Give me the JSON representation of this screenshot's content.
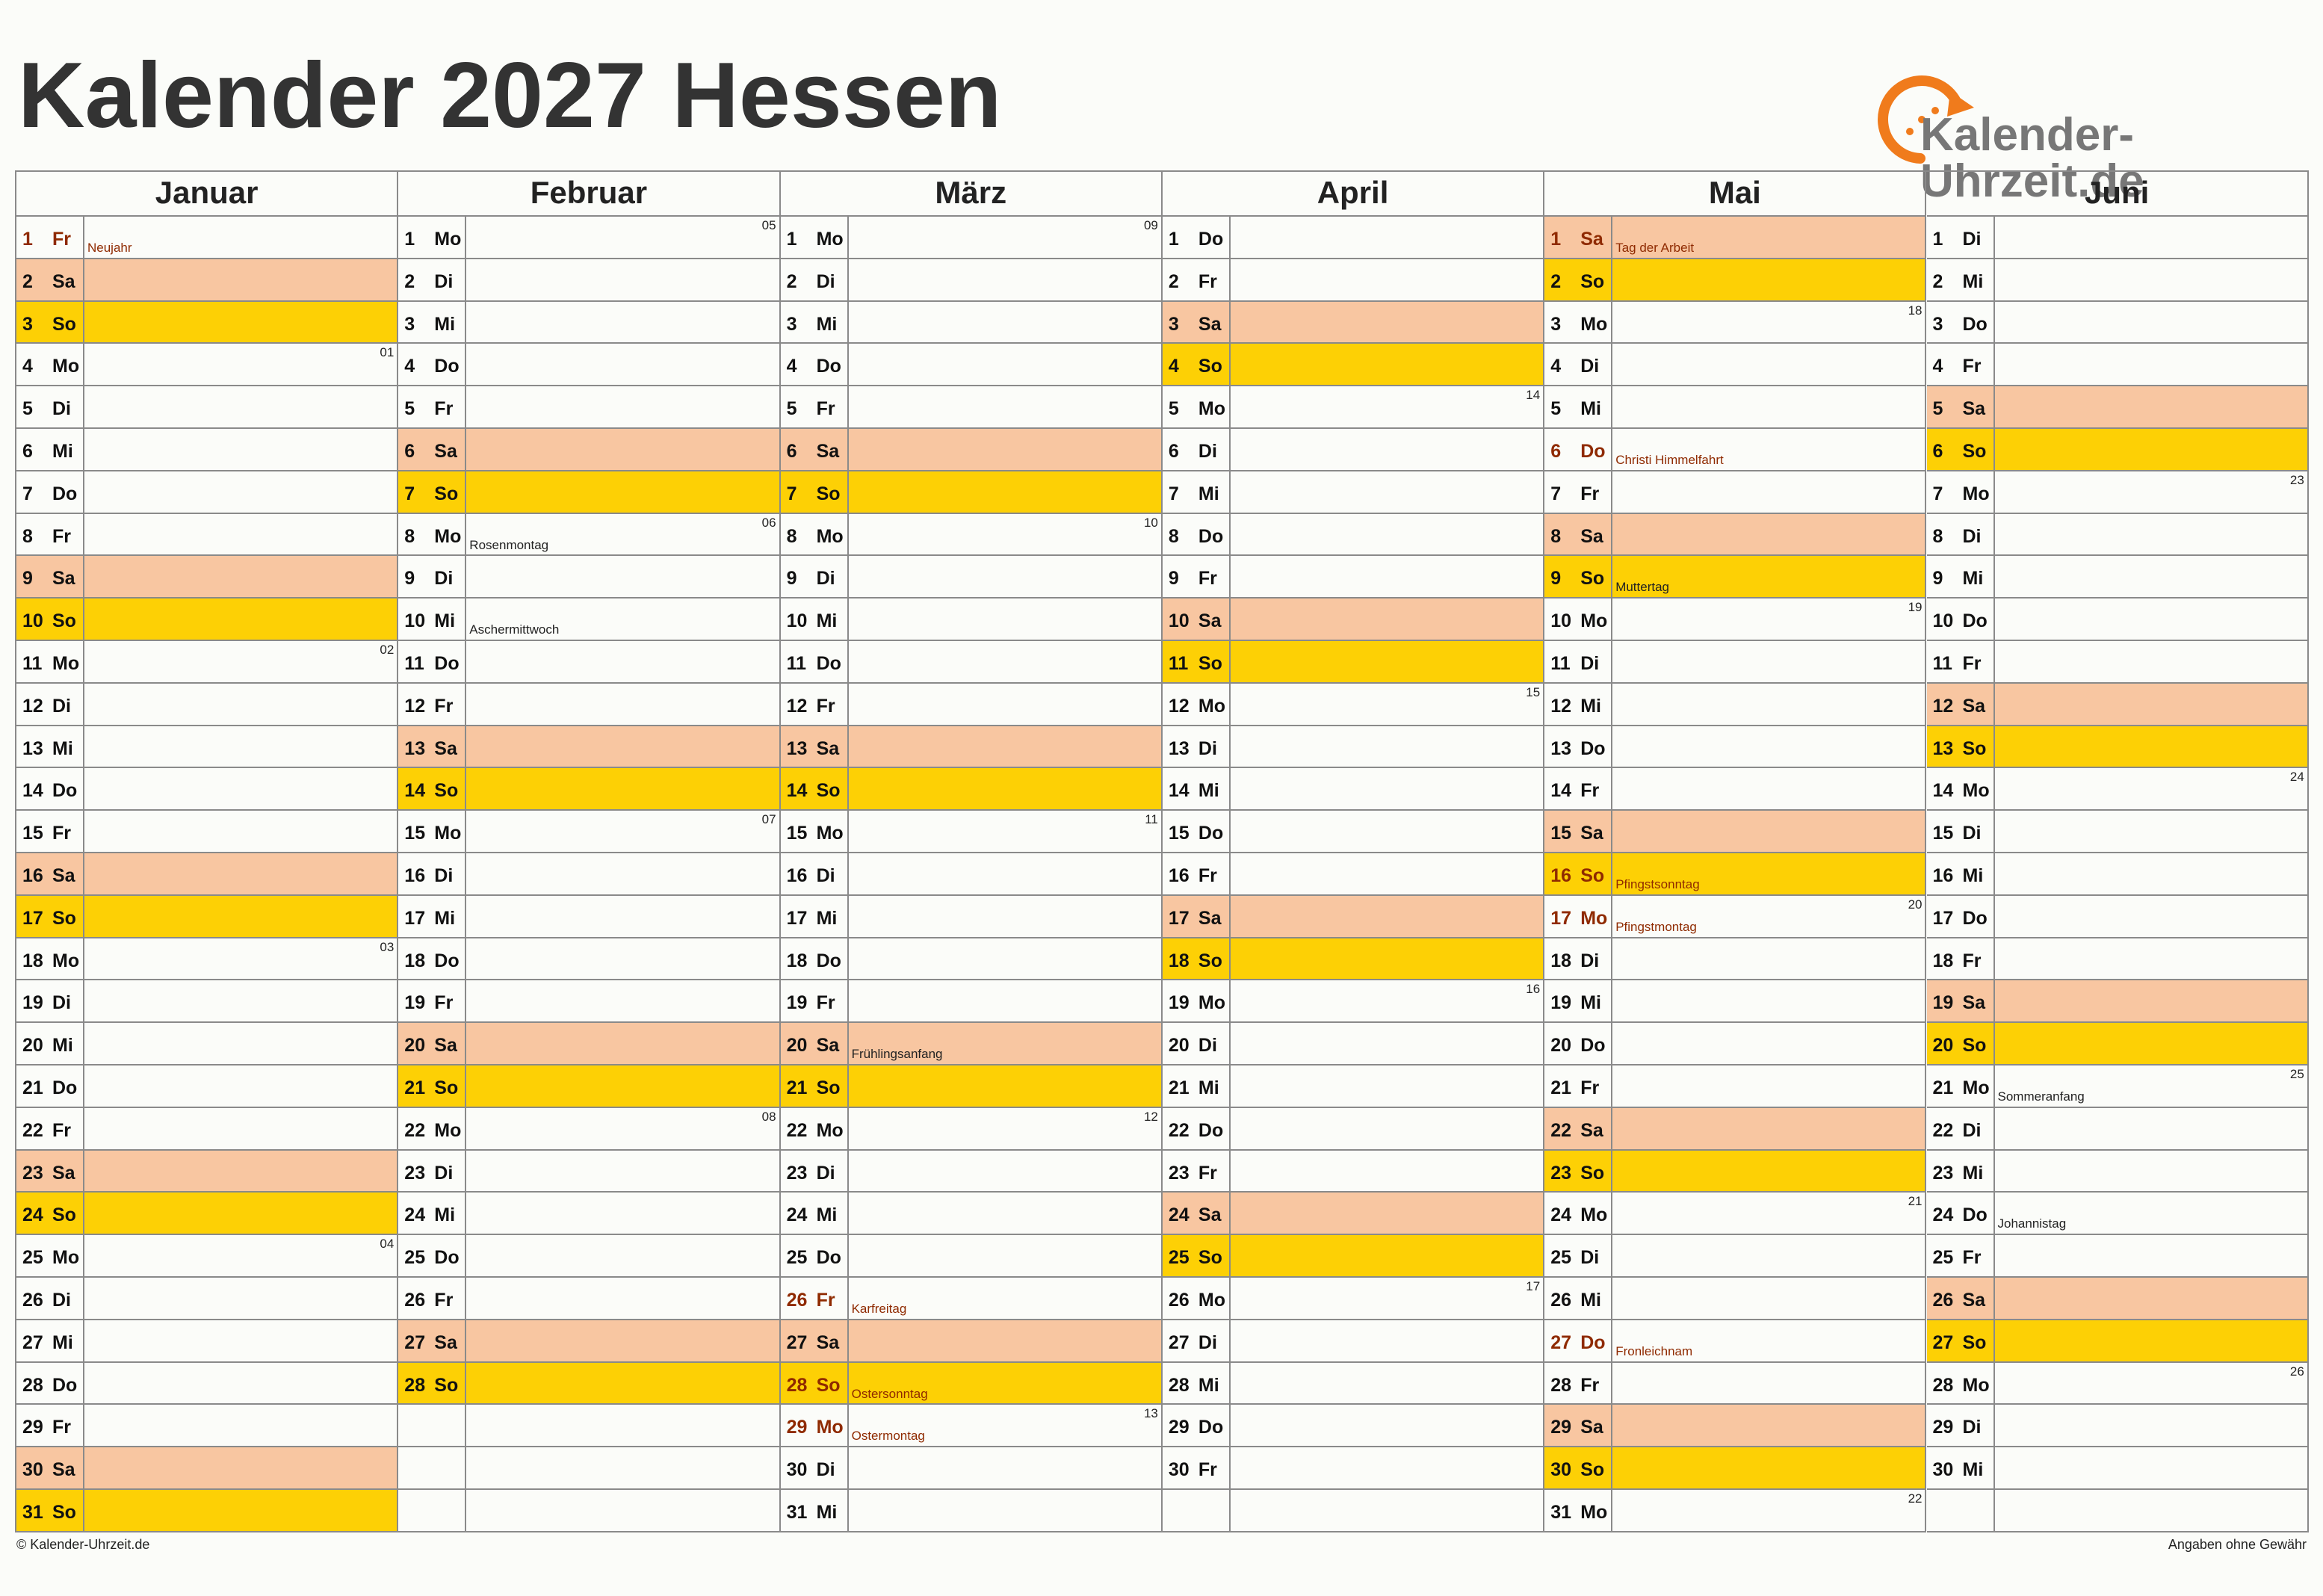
{
  "header": {
    "title": "Kalender 2027 Hessen",
    "logo": "Kalender-Uhrzeit.de"
  },
  "months": [
    {
      "name": "Januar",
      "days": [
        {
          "d": 1,
          "w": "Fr",
          "n": "Neujahr",
          "h": true
        },
        {
          "d": 2,
          "w": "Sa"
        },
        {
          "d": 3,
          "w": "So"
        },
        {
          "d": 4,
          "w": "Mo",
          "k": "01"
        },
        {
          "d": 5,
          "w": "Di"
        },
        {
          "d": 6,
          "w": "Mi"
        },
        {
          "d": 7,
          "w": "Do"
        },
        {
          "d": 8,
          "w": "Fr"
        },
        {
          "d": 9,
          "w": "Sa"
        },
        {
          "d": 10,
          "w": "So"
        },
        {
          "d": 11,
          "w": "Mo",
          "k": "02"
        },
        {
          "d": 12,
          "w": "Di"
        },
        {
          "d": 13,
          "w": "Mi"
        },
        {
          "d": 14,
          "w": "Do"
        },
        {
          "d": 15,
          "w": "Fr"
        },
        {
          "d": 16,
          "w": "Sa"
        },
        {
          "d": 17,
          "w": "So"
        },
        {
          "d": 18,
          "w": "Mo",
          "k": "03"
        },
        {
          "d": 19,
          "w": "Di"
        },
        {
          "d": 20,
          "w": "Mi"
        },
        {
          "d": 21,
          "w": "Do"
        },
        {
          "d": 22,
          "w": "Fr"
        },
        {
          "d": 23,
          "w": "Sa"
        },
        {
          "d": 24,
          "w": "So"
        },
        {
          "d": 25,
          "w": "Mo",
          "k": "04"
        },
        {
          "d": 26,
          "w": "Di"
        },
        {
          "d": 27,
          "w": "Mi"
        },
        {
          "d": 28,
          "w": "Do"
        },
        {
          "d": 29,
          "w": "Fr"
        },
        {
          "d": 30,
          "w": "Sa"
        },
        {
          "d": 31,
          "w": "So"
        }
      ]
    },
    {
      "name": "Februar",
      "days": [
        {
          "d": 1,
          "w": "Mo",
          "k": "05"
        },
        {
          "d": 2,
          "w": "Di"
        },
        {
          "d": 3,
          "w": "Mi"
        },
        {
          "d": 4,
          "w": "Do"
        },
        {
          "d": 5,
          "w": "Fr"
        },
        {
          "d": 6,
          "w": "Sa"
        },
        {
          "d": 7,
          "w": "So"
        },
        {
          "d": 8,
          "w": "Mo",
          "k": "06",
          "n": "Rosenmontag"
        },
        {
          "d": 9,
          "w": "Di"
        },
        {
          "d": 10,
          "w": "Mi",
          "n": "Aschermittwoch"
        },
        {
          "d": 11,
          "w": "Do"
        },
        {
          "d": 12,
          "w": "Fr"
        },
        {
          "d": 13,
          "w": "Sa"
        },
        {
          "d": 14,
          "w": "So"
        },
        {
          "d": 15,
          "w": "Mo",
          "k": "07"
        },
        {
          "d": 16,
          "w": "Di"
        },
        {
          "d": 17,
          "w": "Mi"
        },
        {
          "d": 18,
          "w": "Do"
        },
        {
          "d": 19,
          "w": "Fr"
        },
        {
          "d": 20,
          "w": "Sa"
        },
        {
          "d": 21,
          "w": "So"
        },
        {
          "d": 22,
          "w": "Mo",
          "k": "08"
        },
        {
          "d": 23,
          "w": "Di"
        },
        {
          "d": 24,
          "w": "Mi"
        },
        {
          "d": 25,
          "w": "Do"
        },
        {
          "d": 26,
          "w": "Fr"
        },
        {
          "d": 27,
          "w": "Sa"
        },
        {
          "d": 28,
          "w": "So"
        }
      ]
    },
    {
      "name": "März",
      "days": [
        {
          "d": 1,
          "w": "Mo",
          "k": "09"
        },
        {
          "d": 2,
          "w": "Di"
        },
        {
          "d": 3,
          "w": "Mi"
        },
        {
          "d": 4,
          "w": "Do"
        },
        {
          "d": 5,
          "w": "Fr"
        },
        {
          "d": 6,
          "w": "Sa"
        },
        {
          "d": 7,
          "w": "So"
        },
        {
          "d": 8,
          "w": "Mo",
          "k": "10"
        },
        {
          "d": 9,
          "w": "Di"
        },
        {
          "d": 10,
          "w": "Mi"
        },
        {
          "d": 11,
          "w": "Do"
        },
        {
          "d": 12,
          "w": "Fr"
        },
        {
          "d": 13,
          "w": "Sa"
        },
        {
          "d": 14,
          "w": "So"
        },
        {
          "d": 15,
          "w": "Mo",
          "k": "11"
        },
        {
          "d": 16,
          "w": "Di"
        },
        {
          "d": 17,
          "w": "Mi"
        },
        {
          "d": 18,
          "w": "Do"
        },
        {
          "d": 19,
          "w": "Fr"
        },
        {
          "d": 20,
          "w": "Sa",
          "n": "Frühlingsanfang"
        },
        {
          "d": 21,
          "w": "So"
        },
        {
          "d": 22,
          "w": "Mo",
          "k": "12"
        },
        {
          "d": 23,
          "w": "Di"
        },
        {
          "d": 24,
          "w": "Mi"
        },
        {
          "d": 25,
          "w": "Do"
        },
        {
          "d": 26,
          "w": "Fr",
          "n": "Karfreitag",
          "h": true
        },
        {
          "d": 27,
          "w": "Sa"
        },
        {
          "d": 28,
          "w": "So",
          "n": "Ostersonntag",
          "h": true
        },
        {
          "d": 29,
          "w": "Mo",
          "k": "13",
          "n": "Ostermontag",
          "h": true
        },
        {
          "d": 30,
          "w": "Di"
        },
        {
          "d": 31,
          "w": "Mi"
        }
      ]
    },
    {
      "name": "April",
      "days": [
        {
          "d": 1,
          "w": "Do"
        },
        {
          "d": 2,
          "w": "Fr"
        },
        {
          "d": 3,
          "w": "Sa"
        },
        {
          "d": 4,
          "w": "So"
        },
        {
          "d": 5,
          "w": "Mo",
          "k": "14"
        },
        {
          "d": 6,
          "w": "Di"
        },
        {
          "d": 7,
          "w": "Mi"
        },
        {
          "d": 8,
          "w": "Do"
        },
        {
          "d": 9,
          "w": "Fr"
        },
        {
          "d": 10,
          "w": "Sa"
        },
        {
          "d": 11,
          "w": "So"
        },
        {
          "d": 12,
          "w": "Mo",
          "k": "15"
        },
        {
          "d": 13,
          "w": "Di"
        },
        {
          "d": 14,
          "w": "Mi"
        },
        {
          "d": 15,
          "w": "Do"
        },
        {
          "d": 16,
          "w": "Fr"
        },
        {
          "d": 17,
          "w": "Sa"
        },
        {
          "d": 18,
          "w": "So"
        },
        {
          "d": 19,
          "w": "Mo",
          "k": "16"
        },
        {
          "d": 20,
          "w": "Di"
        },
        {
          "d": 21,
          "w": "Mi"
        },
        {
          "d": 22,
          "w": "Do"
        },
        {
          "d": 23,
          "w": "Fr"
        },
        {
          "d": 24,
          "w": "Sa"
        },
        {
          "d": 25,
          "w": "So"
        },
        {
          "d": 26,
          "w": "Mo",
          "k": "17"
        },
        {
          "d": 27,
          "w": "Di"
        },
        {
          "d": 28,
          "w": "Mi"
        },
        {
          "d": 29,
          "w": "Do"
        },
        {
          "d": 30,
          "w": "Fr"
        }
      ]
    },
    {
      "name": "Mai",
      "days": [
        {
          "d": 1,
          "w": "Sa",
          "n": "Tag der Arbeit",
          "h": true
        },
        {
          "d": 2,
          "w": "So"
        },
        {
          "d": 3,
          "w": "Mo",
          "k": "18"
        },
        {
          "d": 4,
          "w": "Di"
        },
        {
          "d": 5,
          "w": "Mi"
        },
        {
          "d": 6,
          "w": "Do",
          "n": "Christi Himmelfahrt",
          "h": true
        },
        {
          "d": 7,
          "w": "Fr"
        },
        {
          "d": 8,
          "w": "Sa"
        },
        {
          "d": 9,
          "w": "So",
          "n": "Muttertag"
        },
        {
          "d": 10,
          "w": "Mo",
          "k": "19"
        },
        {
          "d": 11,
          "w": "Di"
        },
        {
          "d": 12,
          "w": "Mi"
        },
        {
          "d": 13,
          "w": "Do"
        },
        {
          "d": 14,
          "w": "Fr"
        },
        {
          "d": 15,
          "w": "Sa"
        },
        {
          "d": 16,
          "w": "So",
          "n": "Pfingstsonntag",
          "h": true
        },
        {
          "d": 17,
          "w": "Mo",
          "k": "20",
          "n": "Pfingstmontag",
          "h": true
        },
        {
          "d": 18,
          "w": "Di"
        },
        {
          "d": 19,
          "w": "Mi"
        },
        {
          "d": 20,
          "w": "Do"
        },
        {
          "d": 21,
          "w": "Fr"
        },
        {
          "d": 22,
          "w": "Sa"
        },
        {
          "d": 23,
          "w": "So"
        },
        {
          "d": 24,
          "w": "Mo",
          "k": "21"
        },
        {
          "d": 25,
          "w": "Di"
        },
        {
          "d": 26,
          "w": "Mi"
        },
        {
          "d": 27,
          "w": "Do",
          "n": "Fronleichnam",
          "h": true
        },
        {
          "d": 28,
          "w": "Fr"
        },
        {
          "d": 29,
          "w": "Sa"
        },
        {
          "d": 30,
          "w": "So"
        },
        {
          "d": 31,
          "w": "Mo",
          "k": "22"
        }
      ]
    },
    {
      "name": "Juni",
      "days": [
        {
          "d": 1,
          "w": "Di"
        },
        {
          "d": 2,
          "w": "Mi"
        },
        {
          "d": 3,
          "w": "Do"
        },
        {
          "d": 4,
          "w": "Fr"
        },
        {
          "d": 5,
          "w": "Sa"
        },
        {
          "d": 6,
          "w": "So"
        },
        {
          "d": 7,
          "w": "Mo",
          "k": "23"
        },
        {
          "d": 8,
          "w": "Di"
        },
        {
          "d": 9,
          "w": "Mi"
        },
        {
          "d": 10,
          "w": "Do"
        },
        {
          "d": 11,
          "w": "Fr"
        },
        {
          "d": 12,
          "w": "Sa"
        },
        {
          "d": 13,
          "w": "So"
        },
        {
          "d": 14,
          "w": "Mo",
          "k": "24"
        },
        {
          "d": 15,
          "w": "Di"
        },
        {
          "d": 16,
          "w": "Mi"
        },
        {
          "d": 17,
          "w": "Do"
        },
        {
          "d": 18,
          "w": "Fr"
        },
        {
          "d": 19,
          "w": "Sa"
        },
        {
          "d": 20,
          "w": "So"
        },
        {
          "d": 21,
          "w": "Mo",
          "k": "25",
          "n": "Sommeranfang"
        },
        {
          "d": 22,
          "w": "Di"
        },
        {
          "d": 23,
          "w": "Mi"
        },
        {
          "d": 24,
          "w": "Do",
          "n": "Johannistag"
        },
        {
          "d": 25,
          "w": "Fr"
        },
        {
          "d": 26,
          "w": "Sa"
        },
        {
          "d": 27,
          "w": "So"
        },
        {
          "d": 28,
          "w": "Mo",
          "k": "26"
        },
        {
          "d": 29,
          "w": "Di"
        },
        {
          "d": 30,
          "w": "Mi"
        }
      ]
    }
  ],
  "footer": {
    "left": "© Kalender-Uhrzeit.de",
    "right": "Angaben ohne Gewähr"
  }
}
